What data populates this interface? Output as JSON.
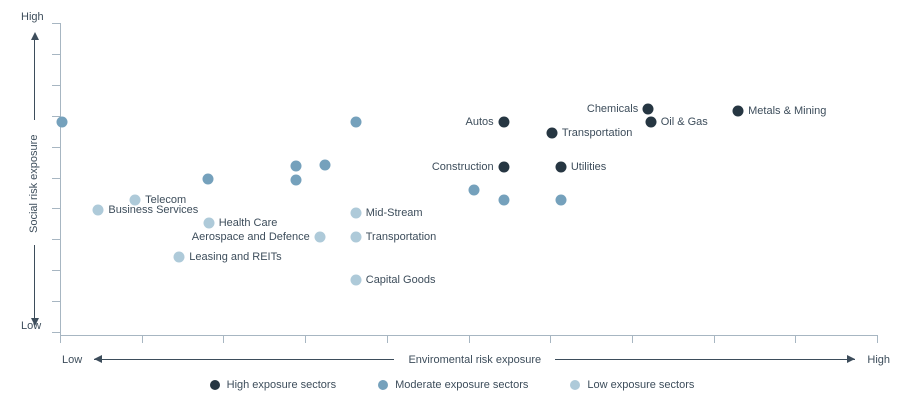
{
  "chart_data": {
    "type": "scatter",
    "title": "",
    "x_axis": {
      "label": "Enviromental risk exposure",
      "low": "Low",
      "high": "High",
      "range": [
        0,
        1
      ],
      "tick_count": 11,
      "grid": false
    },
    "y_axis": {
      "label": "Social risk exposure",
      "low": "Low",
      "high": "High",
      "range": [
        0,
        1
      ],
      "tick_count": 11,
      "grid": false
    },
    "legend_position": "bottom-center",
    "categories": [
      {
        "id": "high",
        "label": "High exposure sectors",
        "color": "#263642"
      },
      {
        "id": "moderate",
        "label": "Moderate exposure sectors",
        "color": "#75a1bc"
      },
      {
        "id": "low",
        "label": "Low exposure sectors",
        "color": "#aecad9"
      }
    ],
    "points": [
      {
        "label": "",
        "category": "moderate",
        "x": 0.002,
        "y": 0.683,
        "label_side": "none"
      },
      {
        "label": "",
        "category": "moderate",
        "x": 0.181,
        "y": 0.5,
        "label_side": "none"
      },
      {
        "label": "",
        "category": "moderate",
        "x": 0.289,
        "y": 0.542,
        "label_side": "none"
      },
      {
        "label": "",
        "category": "moderate",
        "x": 0.289,
        "y": 0.497,
        "label_side": "none"
      },
      {
        "label": "",
        "category": "moderate",
        "x": 0.324,
        "y": 0.545,
        "label_side": "none"
      },
      {
        "label": "",
        "category": "moderate",
        "x": 0.362,
        "y": 0.683,
        "label_side": "none"
      },
      {
        "label": "",
        "category": "moderate",
        "x": 0.507,
        "y": 0.465,
        "label_side": "none"
      },
      {
        "label": "",
        "category": "moderate",
        "x": 0.543,
        "y": 0.433,
        "label_side": "none"
      },
      {
        "label": "",
        "category": "moderate",
        "x": 0.613,
        "y": 0.433,
        "label_side": "none"
      },
      {
        "label": "Business Services",
        "category": "low",
        "x": 0.047,
        "y": 0.401,
        "label_side": "right"
      },
      {
        "label": "Telecom",
        "category": "low",
        "x": 0.092,
        "y": 0.433,
        "label_side": "right"
      },
      {
        "label": "Health Care",
        "category": "low",
        "x": 0.182,
        "y": 0.359,
        "label_side": "right"
      },
      {
        "label": "Leasing and REITs",
        "category": "low",
        "x": 0.146,
        "y": 0.25,
        "label_side": "right"
      },
      {
        "label": "Aerospace and Defence",
        "category": "low",
        "x": 0.318,
        "y": 0.314,
        "label_side": "left"
      },
      {
        "label": "Mid-Stream",
        "category": "low",
        "x": 0.362,
        "y": 0.391,
        "label_side": "right"
      },
      {
        "label": "Transportation",
        "category": "low",
        "x": 0.362,
        "y": 0.314,
        "label_side": "right"
      },
      {
        "label": "Capital Goods",
        "category": "low",
        "x": 0.362,
        "y": 0.176,
        "label_side": "right"
      },
      {
        "label": "Autos",
        "category": "high",
        "x": 0.543,
        "y": 0.683,
        "label_side": "left"
      },
      {
        "label": "Transportation",
        "category": "high",
        "x": 0.602,
        "y": 0.647,
        "label_side": "right"
      },
      {
        "label": "Construction",
        "category": "high",
        "x": 0.543,
        "y": 0.538,
        "label_side": "left"
      },
      {
        "label": "Utilities",
        "category": "high",
        "x": 0.613,
        "y": 0.538,
        "label_side": "right"
      },
      {
        "label": "Chemicals",
        "category": "high",
        "x": 0.72,
        "y": 0.724,
        "label_side": "left"
      },
      {
        "label": "Oil & Gas",
        "category": "high",
        "x": 0.723,
        "y": 0.683,
        "label_side": "right"
      },
      {
        "label": "Metals & Mining",
        "category": "high",
        "x": 0.83,
        "y": 0.718,
        "label_side": "right"
      }
    ]
  },
  "colors": {
    "axis_frame": "#a7b6c2",
    "annotation": "#3d4d5b",
    "background": "#ffffff"
  }
}
